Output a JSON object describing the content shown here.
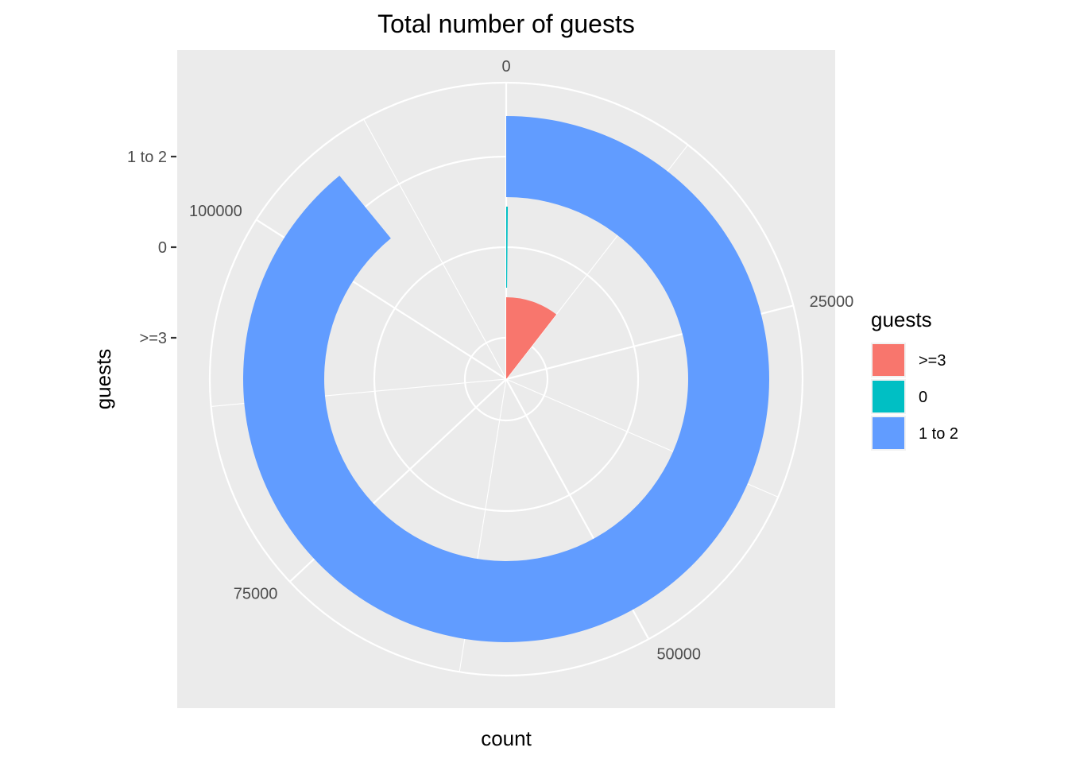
{
  "chart_data": {
    "type": "pie",
    "coord": "polar",
    "theta_variable": "count",
    "title": "Total number of guests",
    "xlabel": "count",
    "ylabel": "guests",
    "categories": [
      ">=3",
      "0",
      "1 to 2"
    ],
    "values": [
      12500,
      180,
      106000
    ],
    "colors": [
      "#F8766D",
      "#00BFC4",
      "#619CFF"
    ],
    "theta_ticks": [
      "0",
      "25000",
      "50000",
      "75000",
      "100000"
    ],
    "theta_tick_values": [
      0,
      25000,
      50000,
      75000,
      100000
    ],
    "theta_max": 119000,
    "radial_ticks": [
      ">=3",
      "0",
      "1 to 2"
    ],
    "legend": {
      "title": "guests",
      "position": "right",
      "items": [
        ">=3",
        "0",
        "1 to 2"
      ]
    },
    "panel_background": "#EBEBEB",
    "grid_color": "#FFFFFF",
    "grid": true
  }
}
